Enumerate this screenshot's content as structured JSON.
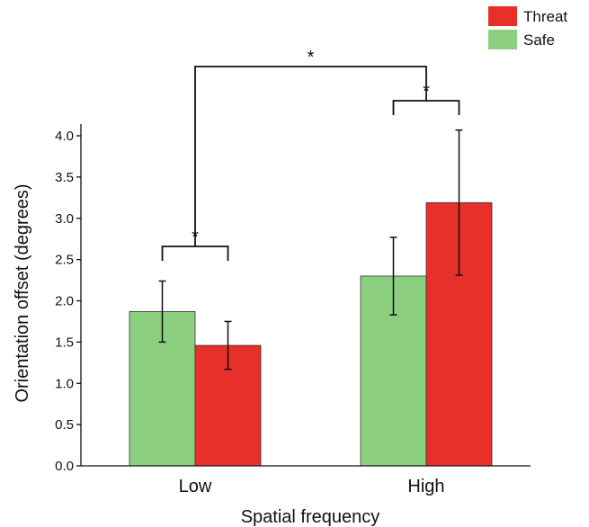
{
  "chart_data": {
    "type": "bar",
    "title": "",
    "xlabel": "Spatial frequency",
    "ylabel": "Orientation offset (degrees)",
    "ylim": [
      0,
      4.1
    ],
    "yticks": [
      "0.0",
      "0.5",
      "1.0",
      "1.5",
      "2.0",
      "2.5",
      "3.0",
      "3.5",
      "4.0"
    ],
    "categories": [
      "Low",
      "High"
    ],
    "series": [
      {
        "name": "Safe",
        "color": "#8ccf7f",
        "values": [
          1.87,
          2.3
        ],
        "error": [
          0.37,
          0.47
        ]
      },
      {
        "name": "Threat",
        "color": "#e8302a",
        "values": [
          1.46,
          3.19
        ],
        "error": [
          0.29,
          0.88
        ]
      }
    ],
    "legend": {
      "placement": "top-right",
      "order": [
        "Threat",
        "Safe"
      ]
    },
    "significance": [
      {
        "label": "*",
        "between": "Low Safe vs Low Threat"
      },
      {
        "label": "*",
        "between": "High Safe vs High Threat"
      },
      {
        "label": "*",
        "between": "Low vs High"
      }
    ],
    "grid": false
  }
}
